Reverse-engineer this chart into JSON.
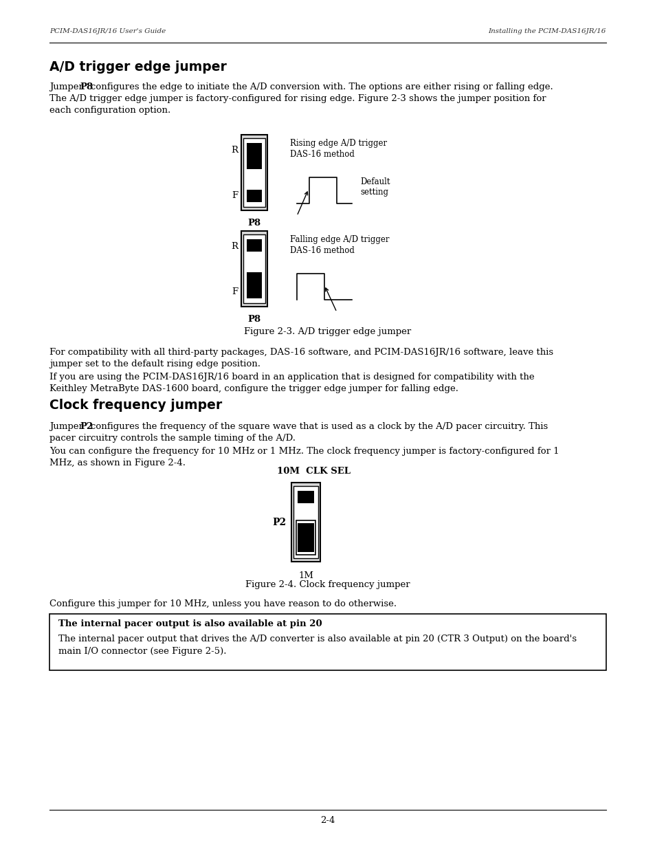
{
  "page_header_left": "PCIM-DAS16JR/16 User's Guide",
  "page_header_right": "Installing the PCIM-DAS16JR/16",
  "page_footer": "2-4",
  "section1_title": "A/D trigger edge jumper",
  "fig1_rising_label1": "Rising edge A/D trigger",
  "fig1_rising_label2": "DAS-16 method",
  "fig1_default_label1": "Default",
  "fig1_default_label2": "setting",
  "fig1_falling_label1": "Falling edge A/D trigger",
  "fig1_falling_label2": "DAS-16 method",
  "fig1_caption": "Figure 2-3. A/D trigger edge jumper",
  "section2_title": "Clock frequency jumper",
  "fig2_top_label": "10M  CLK SEL",
  "fig2_p2_label": "P2",
  "fig2_bottom_label": "1M",
  "fig2_caption": "Figure 2-4. Clock frequency jumper",
  "note_title": "The internal pacer output is also available at pin 20",
  "bg_color": "#ffffff"
}
